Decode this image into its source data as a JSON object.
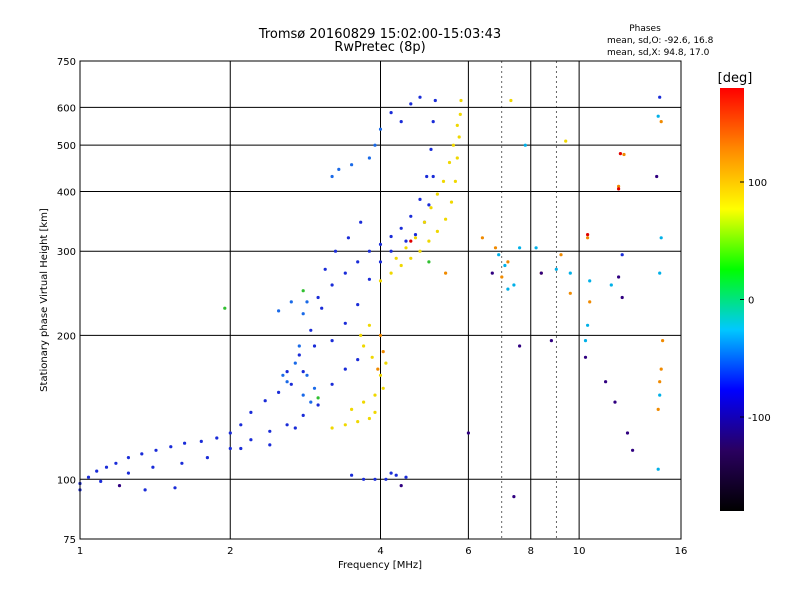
{
  "chart_data": {
    "type": "scatter",
    "title": "Tromsø 20160829 15:02:00-15:03:43",
    "subtitle": "RwPretec (8p)",
    "xlabel": "Frequency [MHz]",
    "ylabel": "Stationary phase Virtual Height [km]",
    "x_scale": "log",
    "y_scale": "log",
    "xlim": [
      1,
      16
    ],
    "ylim": [
      75,
      750
    ],
    "x_ticks": [
      1,
      2,
      4,
      6,
      8,
      10,
      16
    ],
    "x_tick_labels": [
      "1",
      "2",
      "4",
      "6",
      "8",
      "10",
      "16"
    ],
    "y_ticks": [
      75,
      100,
      200,
      300,
      400,
      500,
      600,
      750
    ],
    "y_tick_labels": [
      "75",
      "100",
      "200",
      "300",
      "400",
      "500",
      "600",
      "750"
    ],
    "grid": true,
    "stats": {
      "heading": "Phases",
      "line_o": "mean, sd,O: -92.6, 16.8",
      "line_x": "mean, sd,X:  94.8, 17.0"
    },
    "colorbar": {
      "label": "[deg]",
      "ticks": [
        100,
        0,
        -100
      ],
      "tick_labels": [
        "100",
        "0",
        "-100"
      ],
      "range": [
        -180,
        180
      ],
      "colors": [
        "#000000",
        "#2a0060",
        "#0000ff",
        "#00c8ff",
        "#00ff00",
        "#ffff00",
        "#ff8800",
        "#ff0000"
      ]
    },
    "series": [
      {
        "polarity": "O",
        "phase_deg": -100,
        "color": "#1a2cd8",
        "points": [
          [
            1.0,
            98
          ],
          [
            1.04,
            101
          ],
          [
            1.08,
            104
          ],
          [
            1.13,
            106
          ],
          [
            1.18,
            108
          ],
          [
            1.25,
            111
          ],
          [
            1.33,
            113
          ],
          [
            1.42,
            115
          ],
          [
            1.52,
            117
          ],
          [
            1.62,
            119
          ],
          [
            1.75,
            120
          ],
          [
            1.88,
            122
          ],
          [
            2.0,
            125
          ],
          [
            2.1,
            130
          ],
          [
            2.2,
            138
          ],
          [
            2.35,
            146
          ],
          [
            2.5,
            152
          ],
          [
            2.65,
            158
          ],
          [
            2.8,
            168
          ],
          [
            2.95,
            190
          ],
          [
            3.05,
            228
          ],
          [
            3.2,
            255
          ],
          [
            3.4,
            270
          ],
          [
            3.6,
            285
          ],
          [
            3.8,
            300
          ],
          [
            4.0,
            310
          ],
          [
            4.2,
            322
          ],
          [
            4.4,
            335
          ],
          [
            4.6,
            355
          ],
          [
            4.8,
            385
          ],
          [
            4.95,
            430
          ],
          [
            5.05,
            490
          ],
          [
            5.1,
            560
          ],
          [
            5.15,
            620
          ],
          [
            1.0,
            95
          ],
          [
            1.1,
            99
          ],
          [
            1.25,
            103
          ],
          [
            1.4,
            106
          ],
          [
            1.6,
            108
          ],
          [
            1.8,
            111
          ],
          [
            2.0,
            116
          ],
          [
            2.2,
            121
          ],
          [
            2.4,
            126
          ],
          [
            2.6,
            130
          ],
          [
            2.8,
            136
          ],
          [
            3.0,
            143
          ],
          [
            3.2,
            158
          ],
          [
            3.4,
            170
          ],
          [
            3.6,
            178
          ],
          [
            2.6,
            168
          ],
          [
            2.75,
            182
          ],
          [
            2.9,
            205
          ],
          [
            3.0,
            240
          ],
          [
            3.1,
            275
          ],
          [
            3.25,
            300
          ],
          [
            3.45,
            320
          ],
          [
            3.65,
            345
          ],
          [
            3.2,
            195
          ],
          [
            3.4,
            212
          ],
          [
            3.6,
            232
          ],
          [
            3.8,
            262
          ],
          [
            4.0,
            285
          ],
          [
            4.2,
            300
          ],
          [
            4.5,
            315
          ],
          [
            4.7,
            325
          ],
          [
            4.9,
            345
          ],
          [
            5.0,
            375
          ],
          [
            5.1,
            430
          ],
          [
            4.4,
            560
          ],
          [
            4.6,
            610
          ],
          [
            4.8,
            630
          ],
          [
            4.2,
            585
          ],
          [
            3.9,
            100
          ],
          [
            4.1,
            100
          ],
          [
            4.3,
            102
          ],
          [
            4.5,
            101
          ],
          [
            4.2,
            103
          ],
          [
            3.5,
            102
          ],
          [
            3.7,
            100
          ],
          [
            2.1,
            116
          ],
          [
            2.4,
            118
          ],
          [
            2.7,
            128
          ],
          [
            1.35,
            95
          ],
          [
            1.55,
            96
          ],
          [
            12.2,
            295
          ],
          [
            14.5,
            630
          ]
        ]
      },
      {
        "polarity": "O-high",
        "phase_deg": -80,
        "color": "#1a6ae8",
        "points": [
          [
            2.8,
            150
          ],
          [
            2.85,
            165
          ],
          [
            2.7,
            175
          ],
          [
            2.75,
            190
          ],
          [
            2.6,
            160
          ],
          [
            2.55,
            165
          ],
          [
            2.9,
            145
          ],
          [
            2.95,
            155
          ],
          [
            2.65,
            235
          ],
          [
            2.8,
            222
          ],
          [
            2.5,
            225
          ],
          [
            2.85,
            235
          ],
          [
            3.9,
            500
          ],
          [
            4.0,
            540
          ],
          [
            3.2,
            430
          ],
          [
            3.8,
            470
          ],
          [
            3.5,
            455
          ],
          [
            3.3,
            445
          ]
        ]
      },
      {
        "polarity": "X",
        "phase_deg": 100,
        "color": "#f0d800",
        "points": [
          [
            3.2,
            128
          ],
          [
            3.4,
            130
          ],
          [
            3.6,
            132
          ],
          [
            3.8,
            134
          ],
          [
            3.9,
            138
          ],
          [
            4.0,
            165
          ],
          [
            4.1,
            175
          ],
          [
            3.7,
            190
          ],
          [
            3.8,
            210
          ],
          [
            4.0,
            260
          ],
          [
            4.2,
            270
          ],
          [
            4.4,
            280
          ],
          [
            4.6,
            290
          ],
          [
            4.8,
            300
          ],
          [
            5.0,
            315
          ],
          [
            5.2,
            330
          ],
          [
            5.4,
            350
          ],
          [
            5.55,
            380
          ],
          [
            5.65,
            420
          ],
          [
            5.7,
            470
          ],
          [
            5.75,
            520
          ],
          [
            5.78,
            580
          ],
          [
            5.8,
            620
          ],
          [
            5.7,
            550
          ],
          [
            5.6,
            500
          ],
          [
            5.5,
            460
          ],
          [
            5.35,
            420
          ],
          [
            5.2,
            395
          ],
          [
            5.05,
            370
          ],
          [
            4.9,
            345
          ],
          [
            4.7,
            320
          ],
          [
            4.5,
            305
          ],
          [
            4.3,
            290
          ],
          [
            3.5,
            140
          ],
          [
            3.7,
            145
          ],
          [
            3.9,
            150
          ],
          [
            4.05,
            155
          ],
          [
            3.65,
            200
          ],
          [
            3.85,
            180
          ],
          [
            7.3,
            620
          ],
          [
            9.4,
            510
          ]
        ]
      },
      {
        "polarity": "X-orange",
        "phase_deg": 130,
        "color": "#f08a00",
        "points": [
          [
            4.0,
            200
          ],
          [
            4.05,
            185
          ],
          [
            3.95,
            170
          ],
          [
            6.4,
            320
          ],
          [
            6.8,
            305
          ],
          [
            7.2,
            285
          ],
          [
            7.0,
            265
          ],
          [
            8.4,
            270
          ],
          [
            9.2,
            295
          ],
          [
            9.6,
            245
          ],
          [
            10.5,
            235
          ],
          [
            10.4,
            320
          ],
          [
            12.0,
            410
          ],
          [
            12.3,
            478
          ],
          [
            14.6,
            560
          ],
          [
            14.7,
            195
          ],
          [
            14.6,
            170
          ],
          [
            14.5,
            160
          ],
          [
            14.4,
            140
          ],
          [
            5.4,
            270
          ]
        ]
      },
      {
        "polarity": "X-red",
        "phase_deg": 170,
        "color": "#e00000",
        "points": [
          [
            12.1,
            480
          ],
          [
            12.0,
            405
          ],
          [
            10.4,
            325
          ],
          [
            4.6,
            315
          ]
        ]
      },
      {
        "polarity": "scatter-cyan",
        "phase_deg": -40,
        "color": "#00b0e8",
        "points": [
          [
            6.9,
            295
          ],
          [
            7.1,
            280
          ],
          [
            7.4,
            255
          ],
          [
            7.6,
            305
          ],
          [
            8.2,
            305
          ],
          [
            9.0,
            275
          ],
          [
            9.6,
            270
          ],
          [
            10.4,
            210
          ],
          [
            10.5,
            260
          ],
          [
            10.3,
            195
          ],
          [
            11.6,
            255
          ],
          [
            14.5,
            270
          ],
          [
            14.6,
            320
          ],
          [
            14.4,
            575
          ],
          [
            14.5,
            150
          ],
          [
            14.4,
            105
          ],
          [
            7.8,
            500
          ],
          [
            7.2,
            250
          ]
        ]
      },
      {
        "polarity": "scatter-dark",
        "phase_deg": -120,
        "color": "#300080",
        "points": [
          [
            6.7,
            270
          ],
          [
            7.6,
            190
          ],
          [
            8.4,
            270
          ],
          [
            8.8,
            195
          ],
          [
            10.3,
            180
          ],
          [
            11.3,
            160
          ],
          [
            11.8,
            145
          ],
          [
            12.0,
            265
          ],
          [
            12.2,
            240
          ],
          [
            12.5,
            125
          ],
          [
            12.8,
            115
          ],
          [
            14.3,
            430
          ],
          [
            6.0,
            125
          ],
          [
            7.4,
            92
          ],
          [
            4.4,
            97
          ],
          [
            1.2,
            97
          ]
        ]
      },
      {
        "polarity": "scatter-green",
        "phase_deg": 40,
        "color": "#30c030",
        "points": [
          [
            1.95,
            228
          ],
          [
            2.8,
            248
          ],
          [
            5.0,
            285
          ],
          [
            3.0,
            148
          ]
        ]
      }
    ]
  }
}
